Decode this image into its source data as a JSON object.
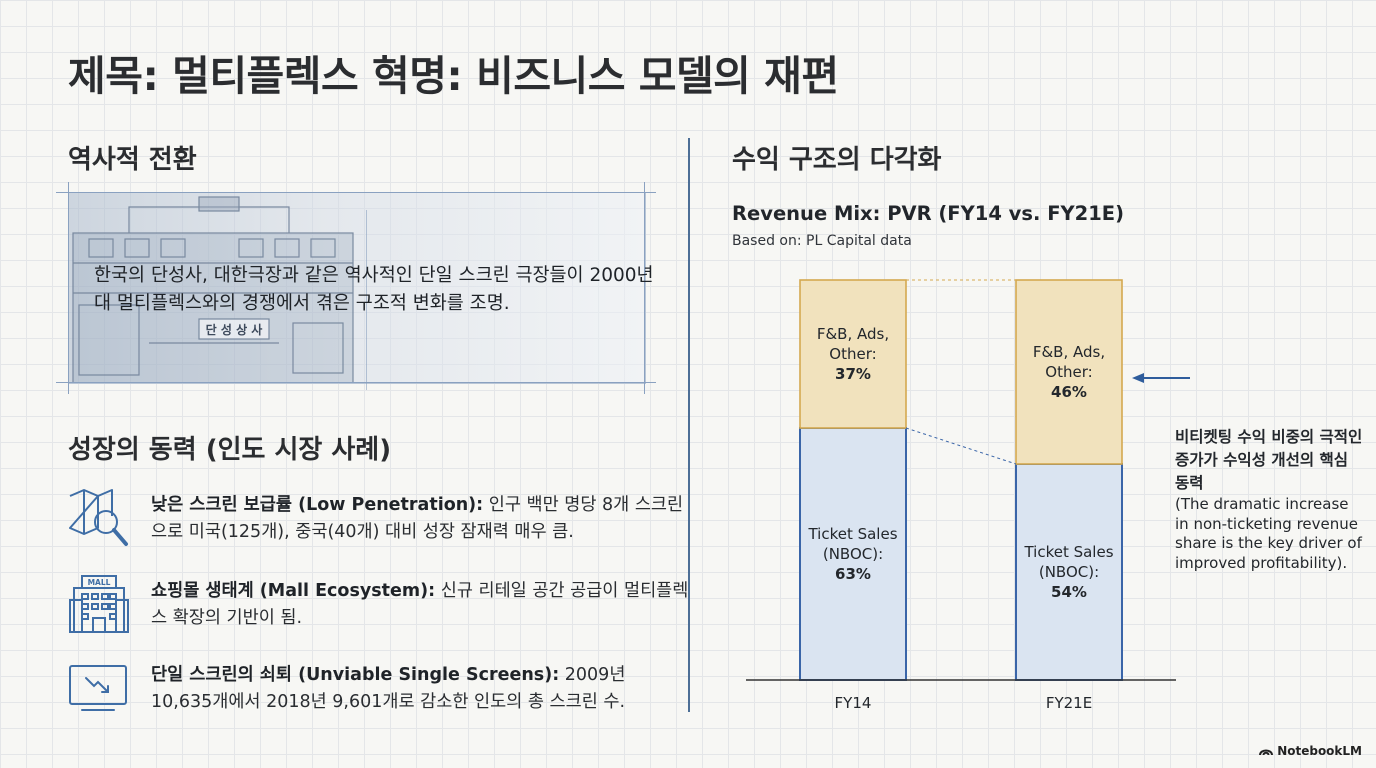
{
  "title": "제목: 멀티플렉스 혁명: 비즈니스 모델의 재편",
  "history": {
    "heading": "역사적 전환",
    "body": "한국의 단성사, 대한극장과 같은 역사적인 단일 스크린 극장들이 2000년대 멀티플렉스와의 경쟁에서 겪은 구조적 변화를 조명.",
    "sign_text": "단 성 상 사"
  },
  "drivers": {
    "heading": "성장의 동력 (인도 시장 사례)",
    "items": [
      {
        "icon": "map-magnifier-icon",
        "bold": "낮은 스크린 보급률 (Low Penetration):",
        "text": " 인구 백만 명당 8개 스크린으로 미국(125개), 중국(40개) 대비 성장 잠재력 매우 큼."
      },
      {
        "icon": "mall-building-icon",
        "icon_label": "MALL",
        "bold": "쇼핑몰 생태계 (Mall Ecosystem):",
        "text": " 신규 리테일 공간 공급이 멀티플렉스 확장의 기반이 됨."
      },
      {
        "icon": "declining-screen-icon",
        "bold": "단일 스크린의 쇠퇴 (Unviable Single Screens):",
        "text": " 2009년 10,635개에서 2018년 9,601개로 감소한 인도의 총 스크린 수."
      }
    ]
  },
  "revenue": {
    "heading": "수익 구조의 다각화",
    "annotation_bold": "비티켓팅 수익 비중의 극적인 증가가 수익성 개선의 핵심 동력",
    "annotation_text": "(The dramatic increase in non-ticketing revenue share is the key driver of improved profitability)."
  },
  "chart_data": {
    "type": "bar",
    "stacked": true,
    "title": "Revenue Mix: PVR (FY14 vs. FY21E)",
    "subtitle": "Based on: PL Capital data",
    "categories": [
      "FY14",
      "FY21E"
    ],
    "series": [
      {
        "name": "Ticket Sales (NBOC)",
        "label_lines": [
          "Ticket Sales",
          "(NBOC):"
        ],
        "values": [
          63,
          54
        ],
        "color": "#dae4f1",
        "stroke": "#3a65a8"
      },
      {
        "name": "F&B, Ads, Other",
        "label_lines": [
          "F&B, Ads,",
          "Other:"
        ],
        "values": [
          37,
          46
        ],
        "color": "#f1e2bd",
        "stroke": "#d4a94f"
      }
    ],
    "ylim": [
      0,
      100
    ],
    "unit": "%"
  },
  "brand": "NotebookLM"
}
